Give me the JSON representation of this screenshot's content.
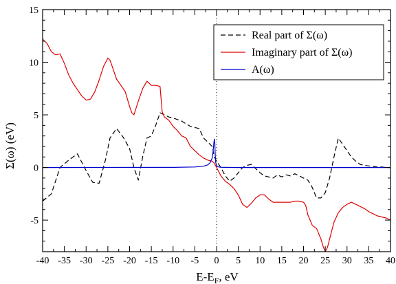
{
  "chart_data": {
    "type": "line",
    "title": "",
    "xlabel": "E-E",
    "xlabel_sub": "F",
    "xlabel_unit": ", eV",
    "ylabel": "Σ(ω) (eV)",
    "xlim": [
      -40,
      40
    ],
    "ylim": [
      -8,
      15
    ],
    "xticks": [
      -40,
      -35,
      -30,
      -25,
      -20,
      -15,
      -10,
      -5,
      0,
      5,
      10,
      15,
      20,
      25,
      30,
      35,
      40
    ],
    "yticks": [
      -5,
      0,
      5,
      10,
      15
    ],
    "grid": false,
    "legend_position": "top-right",
    "fermi_line_x": 0,
    "series": [
      {
        "name": "Real part of Σ(ω)",
        "color": "#000000",
        "style": "dashed",
        "x": [
          -40,
          -38,
          -36,
          -34,
          -32,
          -31,
          -30,
          -28.5,
          -27,
          -25.5,
          -24.5,
          -23,
          -21.5,
          -20,
          -19,
          -18,
          -17,
          -16,
          -15,
          -14,
          -13,
          -12,
          -11,
          -10,
          -8,
          -6,
          -4,
          -3,
          -2,
          -1,
          -0.5,
          0,
          0.5,
          1,
          2,
          3,
          4,
          5,
          6,
          7,
          8,
          9,
          10,
          11,
          12,
          13,
          14,
          15,
          16,
          17,
          18,
          19,
          20,
          21,
          22,
          23,
          24,
          25,
          26,
          27,
          28,
          29,
          30,
          31,
          32,
          33,
          34,
          35,
          36,
          37,
          38,
          39,
          40
        ],
        "y": [
          -3.2,
          -2.5,
          0.0,
          0.7,
          1.3,
          0.5,
          -0.3,
          -1.4,
          -1.5,
          0.8,
          2.8,
          3.7,
          2.9,
          1.8,
          0.0,
          -1.2,
          1.0,
          2.8,
          3.0,
          4.0,
          5.2,
          5.0,
          4.8,
          4.7,
          4.4,
          3.9,
          3.7,
          2.8,
          2.4,
          2.0,
          1.0,
          0.6,
          0.3,
          0.0,
          -0.8,
          -1.3,
          -1.0,
          -0.5,
          0.0,
          0.2,
          0.3,
          -0.1,
          -0.5,
          -0.8,
          -0.9,
          -1.0,
          -0.7,
          -0.9,
          -0.7,
          -0.8,
          -0.6,
          -0.8,
          -1.0,
          -1.2,
          -1.9,
          -2.9,
          -2.9,
          -2.4,
          -1.0,
          1.0,
          2.8,
          2.2,
          1.6,
          1.0,
          0.6,
          0.3,
          0.2,
          0.15,
          0.1,
          0.05,
          0.05,
          0.0,
          0.0
        ]
      },
      {
        "name": "Imaginary part of Σ(ω)",
        "color": "#e00000",
        "style": "solid",
        "x": [
          -40,
          -39,
          -38,
          -37,
          -36,
          -35,
          -34,
          -33,
          -32,
          -31,
          -30,
          -29,
          -28,
          -27,
          -26,
          -25,
          -24.5,
          -24,
          -23,
          -22,
          -21,
          -20,
          -19.5,
          -19,
          -18,
          -17,
          -16,
          -15.5,
          -15,
          -14,
          -13,
          -12.5,
          -12,
          -11,
          -10,
          -9,
          -8,
          -7,
          -6,
          -5,
          -4,
          -3,
          -2,
          -1,
          -0.5,
          0,
          0.5,
          1,
          2,
          3,
          4,
          5,
          6,
          7,
          8,
          9,
          10,
          11,
          12,
          13,
          14,
          15,
          16,
          17,
          18,
          19,
          20,
          20.5,
          21,
          22,
          23,
          24,
          24.5,
          25,
          25.5,
          26,
          27,
          28,
          29,
          30,
          31,
          32,
          33,
          34,
          35,
          36,
          37,
          38,
          39,
          40
        ],
        "y": [
          12.2,
          11.8,
          11.0,
          10.7,
          10.8,
          9.9,
          8.8,
          8.0,
          7.4,
          6.8,
          6.4,
          6.5,
          7.2,
          8.3,
          9.6,
          10.4,
          10.2,
          9.6,
          8.4,
          7.8,
          7.2,
          5.8,
          5.2,
          5.0,
          6.3,
          7.5,
          8.2,
          8.0,
          7.8,
          7.8,
          7.7,
          5.3,
          4.8,
          4.5,
          3.9,
          3.5,
          3.0,
          2.8,
          2.0,
          1.6,
          1.2,
          0.9,
          0.7,
          0.6,
          0.4,
          0.0,
          -0.4,
          -0.8,
          -1.3,
          -1.6,
          -2.0,
          -2.6,
          -3.5,
          -3.8,
          -3.4,
          -2.9,
          -2.6,
          -2.6,
          -3.0,
          -3.3,
          -3.3,
          -3.3,
          -3.3,
          -3.3,
          -3.2,
          -3.2,
          -3.3,
          -3.6,
          -4.5,
          -5.5,
          -5.8,
          -6.8,
          -7.5,
          -8.0,
          -7.6,
          -6.8,
          -5.2,
          -4.3,
          -3.8,
          -3.5,
          -3.3,
          -3.5,
          -3.7,
          -3.9,
          -4.2,
          -4.4,
          -4.6,
          -4.7,
          -4.8,
          -5.0
        ]
      },
      {
        "name": "A(ω)",
        "color": "#0000d0",
        "style": "solid",
        "x": [
          -40,
          -10,
          -5,
          -3,
          -2,
          -1.5,
          -1,
          -0.8,
          -0.6,
          -0.5,
          -0.4,
          -0.3,
          -0.2,
          0,
          0.5,
          1,
          2,
          5,
          40
        ],
        "y": [
          0.0,
          0.01,
          0.05,
          0.12,
          0.25,
          0.45,
          0.9,
          1.5,
          2.4,
          2.7,
          2.3,
          1.2,
          0.5,
          0.15,
          0.05,
          0.02,
          0.01,
          0.0,
          0.0
        ]
      }
    ]
  }
}
